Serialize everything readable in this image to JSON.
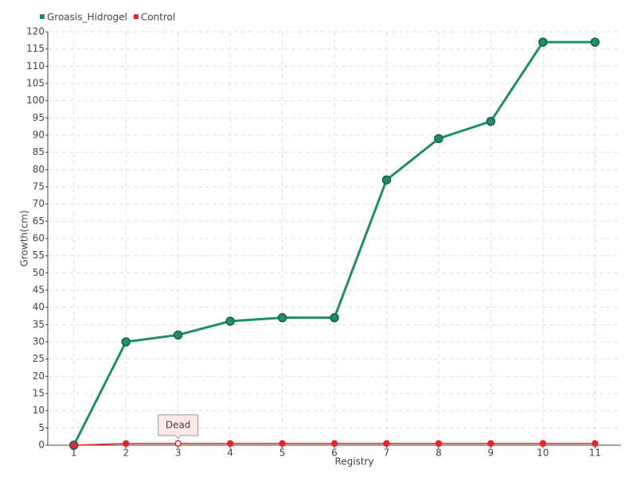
{
  "chart_data": {
    "type": "line",
    "x_label": "Registry",
    "y_label": "Growth(cm)",
    "categories": [
      "1",
      "2",
      "3",
      "4",
      "5",
      "6",
      "7",
      "8",
      "9",
      "10",
      "11"
    ],
    "series": [
      {
        "name": "Groasis_Hidrogel",
        "color": "#1f8c6e",
        "values": [
          0,
          30,
          32,
          36,
          37,
          37,
          77,
          89,
          94,
          117,
          117
        ]
      },
      {
        "name": "Control",
        "color": "#e3262b",
        "values": [
          0,
          0.5,
          0.5,
          0.5,
          0.5,
          0.5,
          0.5,
          0.5,
          0.5,
          0.5,
          0.5
        ]
      }
    ],
    "annotations": [
      {
        "text": "Dead",
        "x": "3"
      }
    ],
    "ylim": [
      0,
      120
    ],
    "yticks": [
      0,
      5,
      10,
      15,
      20,
      25,
      30,
      35,
      40,
      45,
      50,
      55,
      60,
      65,
      70,
      75,
      80,
      85,
      90,
      95,
      100,
      105,
      110,
      115,
      120
    ],
    "grid": true,
    "legend": "top-left"
  }
}
